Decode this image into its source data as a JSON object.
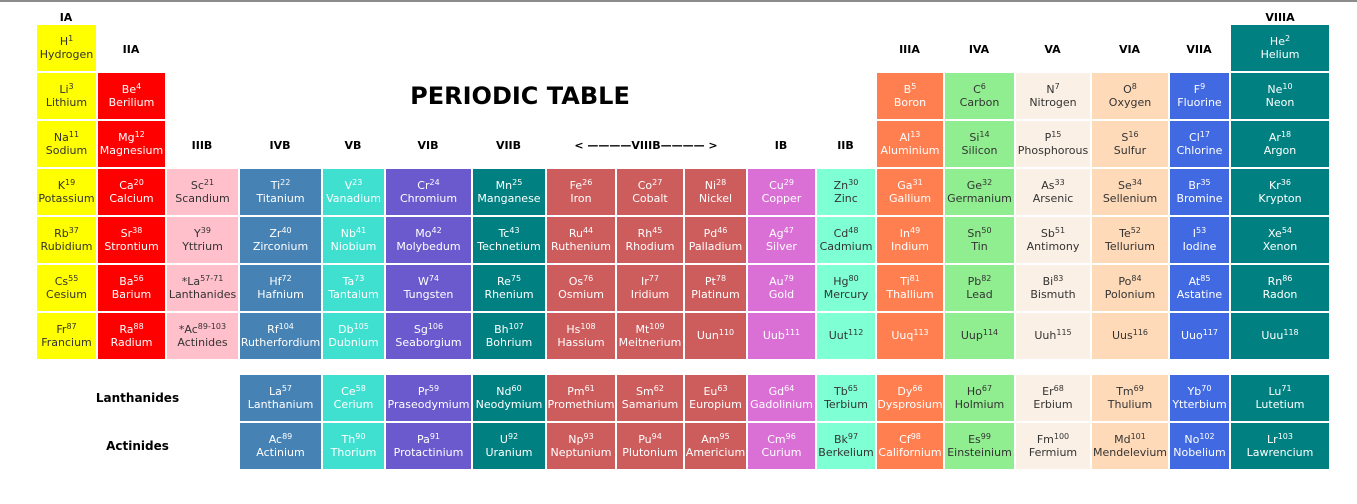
{
  "title": "PERIODIC TABLE",
  "group_headers": [
    {
      "text": "IA"
    },
    {
      "text": "IIA"
    },
    {
      "text": "IIIB"
    },
    {
      "text": "IVB"
    },
    {
      "text": "VB"
    },
    {
      "text": "VIB"
    },
    {
      "text": "VIIB"
    },
    {
      "text": "< ————VIIIB———— >"
    },
    {
      "text": "IB"
    },
    {
      "text": "IIB"
    },
    {
      "text": "IIIA"
    },
    {
      "text": "IVA"
    },
    {
      "text": "VA"
    },
    {
      "text": "VIA"
    },
    {
      "text": "VIIA"
    },
    {
      "text": "VIIIA"
    }
  ],
  "side_labels": {
    "lanthanides": "Lanthanides",
    "actinides": "Actinides"
  },
  "colors": {
    "yellow": "#ffff00",
    "red": "#ff0000",
    "pink": "#ffc0cb",
    "steel": "#4682b4",
    "turq": "#40e0d0",
    "slate": "#6a5acd",
    "teal": "#008080",
    "indian": "#cd5c5c",
    "orchid": "#da70d6",
    "aqua": "#7fffd4",
    "coral": "#ff7f50",
    "lgreen": "#90ee90",
    "linen": "#faf0e6",
    "peach": "#ffdab9",
    "royal": "#4169e1"
  },
  "elements": [
    {
      "sym": "H",
      "num": "1",
      "name": "Hydrogen",
      "row": 1,
      "col": 1,
      "color": "yellow"
    },
    {
      "sym": "He",
      "num": "2",
      "name": "Helium",
      "row": 1,
      "col": 18,
      "color": "teal"
    },
    {
      "sym": "Li",
      "num": "3",
      "name": "Lithium",
      "row": 2,
      "col": 1,
      "color": "yellow"
    },
    {
      "sym": "Be",
      "num": "4",
      "name": "Berilium",
      "row": 2,
      "col": 2,
      "color": "red"
    },
    {
      "sym": "B",
      "num": "5",
      "name": "Boron",
      "row": 2,
      "col": 13,
      "color": "coral"
    },
    {
      "sym": "C",
      "num": "6",
      "name": "Carbon",
      "row": 2,
      "col": 14,
      "color": "lgreen"
    },
    {
      "sym": "N",
      "num": "7",
      "name": "Nitrogen",
      "row": 2,
      "col": 15,
      "color": "linen"
    },
    {
      "sym": "O",
      "num": "8",
      "name": "Oxygen",
      "row": 2,
      "col": 16,
      "color": "peach"
    },
    {
      "sym": "F",
      "num": "9",
      "name": "Fluorine",
      "row": 2,
      "col": 17,
      "color": "royal"
    },
    {
      "sym": "Ne",
      "num": "10",
      "name": "Neon",
      "row": 2,
      "col": 18,
      "color": "teal"
    },
    {
      "sym": "Na",
      "num": "11",
      "name": "Sodium",
      "row": 3,
      "col": 1,
      "color": "yellow"
    },
    {
      "sym": "Mg",
      "num": "12",
      "name": "Magnesium",
      "row": 3,
      "col": 2,
      "color": "red"
    },
    {
      "sym": "Al",
      "num": "13",
      "name": "Aluminium",
      "row": 3,
      "col": 13,
      "color": "coral"
    },
    {
      "sym": "Si",
      "num": "14",
      "name": "Silicon",
      "row": 3,
      "col": 14,
      "color": "lgreen"
    },
    {
      "sym": "P",
      "num": "15",
      "name": "Phosphorous",
      "row": 3,
      "col": 15,
      "color": "linen"
    },
    {
      "sym": "S",
      "num": "16",
      "name": "Sulfur",
      "row": 3,
      "col": 16,
      "color": "peach"
    },
    {
      "sym": "Cl",
      "num": "17",
      "name": "Chlorine",
      "row": 3,
      "col": 17,
      "color": "royal"
    },
    {
      "sym": "Ar",
      "num": "18",
      "name": "Argon",
      "row": 3,
      "col": 18,
      "color": "teal"
    },
    {
      "sym": "K",
      "num": "19",
      "name": "Potassium",
      "row": 4,
      "col": 1,
      "color": "yellow"
    },
    {
      "sym": "Ca",
      "num": "20",
      "name": "Calcium",
      "row": 4,
      "col": 2,
      "color": "red"
    },
    {
      "sym": "Sc",
      "num": "21",
      "name": "Scandium",
      "row": 4,
      "col": 3,
      "color": "pink"
    },
    {
      "sym": "Ti",
      "num": "22",
      "name": "Titanium",
      "row": 4,
      "col": 4,
      "color": "steel"
    },
    {
      "sym": "V",
      "num": "23",
      "name": "Vanadium",
      "row": 4,
      "col": 5,
      "color": "turq"
    },
    {
      "sym": "Cr",
      "num": "24",
      "name": "Chromium",
      "row": 4,
      "col": 6,
      "color": "slate"
    },
    {
      "sym": "Mn",
      "num": "25",
      "name": "Manganese",
      "row": 4,
      "col": 7,
      "color": "teal"
    },
    {
      "sym": "Fe",
      "num": "26",
      "name": "Iron",
      "row": 4,
      "col": 8,
      "color": "indian"
    },
    {
      "sym": "Co",
      "num": "27",
      "name": "Cobalt",
      "row": 4,
      "col": 9,
      "color": "indian"
    },
    {
      "sym": "Ni",
      "num": "28",
      "name": "Nickel",
      "row": 4,
      "col": 10,
      "color": "indian"
    },
    {
      "sym": "Cu",
      "num": "29",
      "name": "Copper",
      "row": 4,
      "col": 11,
      "color": "orchid"
    },
    {
      "sym": "Zn",
      "num": "30",
      "name": "Zinc",
      "row": 4,
      "col": 12,
      "color": "aqua"
    },
    {
      "sym": "Ga",
      "num": "31",
      "name": "Gallium",
      "row": 4,
      "col": 13,
      "color": "coral"
    },
    {
      "sym": "Ge",
      "num": "32",
      "name": "Germanium",
      "row": 4,
      "col": 14,
      "color": "lgreen"
    },
    {
      "sym": "As",
      "num": "33",
      "name": "Arsenic",
      "row": 4,
      "col": 15,
      "color": "linen"
    },
    {
      "sym": "Se",
      "num": "34",
      "name": "Sellenium",
      "row": 4,
      "col": 16,
      "color": "peach"
    },
    {
      "sym": "Br",
      "num": "35",
      "name": "Bromine",
      "row": 4,
      "col": 17,
      "color": "royal"
    },
    {
      "sym": "Kr",
      "num": "36",
      "name": "Krypton",
      "row": 4,
      "col": 18,
      "color": "teal"
    },
    {
      "sym": "Rb",
      "num": "37",
      "name": "Rubidium",
      "row": 5,
      "col": 1,
      "color": "yellow"
    },
    {
      "sym": "Sr",
      "num": "38",
      "name": "Strontium",
      "row": 5,
      "col": 2,
      "color": "red"
    },
    {
      "sym": "Y",
      "num": "39",
      "name": "Yttrium",
      "row": 5,
      "col": 3,
      "color": "pink"
    },
    {
      "sym": "Zr",
      "num": "40",
      "name": "Zirconium",
      "row": 5,
      "col": 4,
      "color": "steel"
    },
    {
      "sym": "Nb",
      "num": "41",
      "name": "Niobium",
      "row": 5,
      "col": 5,
      "color": "turq"
    },
    {
      "sym": "Mo",
      "num": "42",
      "name": "Molybedum",
      "row": 5,
      "col": 6,
      "color": "slate"
    },
    {
      "sym": "Tc",
      "num": "43",
      "name": "Technetium",
      "row": 5,
      "col": 7,
      "color": "teal"
    },
    {
      "sym": "Ru",
      "num": "44",
      "name": "Ruthenium",
      "row": 5,
      "col": 8,
      "color": "indian"
    },
    {
      "sym": "Rh",
      "num": "45",
      "name": "Rhodium",
      "row": 5,
      "col": 9,
      "color": "indian"
    },
    {
      "sym": "Pd",
      "num": "46",
      "name": "Palladium",
      "row": 5,
      "col": 10,
      "color": "indian"
    },
    {
      "sym": "Ag",
      "num": "47",
      "name": "Silver",
      "row": 5,
      "col": 11,
      "color": "orchid"
    },
    {
      "sym": "Cd",
      "num": "48",
      "name": "Cadmium",
      "row": 5,
      "col": 12,
      "color": "aqua"
    },
    {
      "sym": "In",
      "num": "49",
      "name": "Indium",
      "row": 5,
      "col": 13,
      "color": "coral"
    },
    {
      "sym": "Sn",
      "num": "50",
      "name": "Tin",
      "row": 5,
      "col": 14,
      "color": "lgreen"
    },
    {
      "sym": "Sb",
      "num": "51",
      "name": "Antimony",
      "row": 5,
      "col": 15,
      "color": "linen"
    },
    {
      "sym": "Te",
      "num": "52",
      "name": "Tellurium",
      "row": 5,
      "col": 16,
      "color": "peach"
    },
    {
      "sym": "I",
      "num": "53",
      "name": "Iodine",
      "row": 5,
      "col": 17,
      "color": "royal"
    },
    {
      "sym": "Xe",
      "num": "54",
      "name": "Xenon",
      "row": 5,
      "col": 18,
      "color": "teal"
    },
    {
      "sym": "Cs",
      "num": "55",
      "name": "Cesium",
      "row": 6,
      "col": 1,
      "color": "yellow"
    },
    {
      "sym": "Ba",
      "num": "56",
      "name": "Barium",
      "row": 6,
      "col": 2,
      "color": "red"
    },
    {
      "sym": "*La",
      "num": "57-71",
      "name": "Lanthanides",
      "row": 6,
      "col": 3,
      "color": "pink"
    },
    {
      "sym": "Hf",
      "num": "72",
      "name": "Hafnium",
      "row": 6,
      "col": 4,
      "color": "steel"
    },
    {
      "sym": "Ta",
      "num": "73",
      "name": "Tantalum",
      "row": 6,
      "col": 5,
      "color": "turq"
    },
    {
      "sym": "W",
      "num": "74",
      "name": "Tungsten",
      "row": 6,
      "col": 6,
      "color": "slate"
    },
    {
      "sym": "Re",
      "num": "75",
      "name": "Rhenium",
      "row": 6,
      "col": 7,
      "color": "teal"
    },
    {
      "sym": "Os",
      "num": "76",
      "name": "Osmium",
      "row": 6,
      "col": 8,
      "color": "indian"
    },
    {
      "sym": "Ir",
      "num": "77",
      "name": "Iridium",
      "row": 6,
      "col": 9,
      "color": "indian"
    },
    {
      "sym": "Pt",
      "num": "78",
      "name": "Platinum",
      "row": 6,
      "col": 10,
      "color": "indian"
    },
    {
      "sym": "Au",
      "num": "79",
      "name": "Gold",
      "row": 6,
      "col": 11,
      "color": "orchid"
    },
    {
      "sym": "Hg",
      "num": "80",
      "name": "Mercury",
      "row": 6,
      "col": 12,
      "color": "aqua"
    },
    {
      "sym": "Ti",
      "num": "81",
      "name": "Thallium",
      "row": 6,
      "col": 13,
      "color": "coral"
    },
    {
      "sym": "Pb",
      "num": "82",
      "name": "Lead",
      "row": 6,
      "col": 14,
      "color": "lgreen"
    },
    {
      "sym": "Bi",
      "num": "83",
      "name": "Bismuth",
      "row": 6,
      "col": 15,
      "color": "linen"
    },
    {
      "sym": "Po",
      "num": "84",
      "name": "Polonium",
      "row": 6,
      "col": 16,
      "color": "peach"
    },
    {
      "sym": "At",
      "num": "85",
      "name": "Astatine",
      "row": 6,
      "col": 17,
      "color": "royal"
    },
    {
      "sym": "Rn",
      "num": "86",
      "name": "Radon",
      "row": 6,
      "col": 18,
      "color": "teal"
    },
    {
      "sym": "Fr",
      "num": "87",
      "name": "Francium",
      "row": 7,
      "col": 1,
      "color": "yellow"
    },
    {
      "sym": "Ra",
      "num": "88",
      "name": "Radium",
      "row": 7,
      "col": 2,
      "color": "red"
    },
    {
      "sym": "*Ac",
      "num": "89-103",
      "name": "Actinides",
      "row": 7,
      "col": 3,
      "color": "pink"
    },
    {
      "sym": "Rf",
      "num": "104",
      "name": "Rutherfordium",
      "row": 7,
      "col": 4,
      "color": "steel"
    },
    {
      "sym": "Db",
      "num": "105",
      "name": "Dubnium",
      "row": 7,
      "col": 5,
      "color": "turq"
    },
    {
      "sym": "Sg",
      "num": "106",
      "name": "Seaborgium",
      "row": 7,
      "col": 6,
      "color": "slate"
    },
    {
      "sym": "Bh",
      "num": "107",
      "name": "Bohrium",
      "row": 7,
      "col": 7,
      "color": "teal"
    },
    {
      "sym": "Hs",
      "num": "108",
      "name": "Hassium",
      "row": 7,
      "col": 8,
      "color": "indian"
    },
    {
      "sym": "Mt",
      "num": "109",
      "name": "Meitnerium",
      "row": 7,
      "col": 9,
      "color": "indian"
    },
    {
      "sym": "Uun",
      "num": "110",
      "name": "",
      "row": 7,
      "col": 10,
      "color": "indian"
    },
    {
      "sym": "Uub",
      "num": "111",
      "name": "",
      "row": 7,
      "col": 11,
      "color": "orchid"
    },
    {
      "sym": "Uut",
      "num": "112",
      "name": "",
      "row": 7,
      "col": 12,
      "color": "aqua"
    },
    {
      "sym": "Uuq",
      "num": "113",
      "name": "",
      "row": 7,
      "col": 13,
      "color": "coral"
    },
    {
      "sym": "Uup",
      "num": "114",
      "name": "",
      "row": 7,
      "col": 14,
      "color": "lgreen"
    },
    {
      "sym": "Uuh",
      "num": "115",
      "name": "",
      "row": 7,
      "col": 15,
      "color": "linen"
    },
    {
      "sym": "Uus",
      "num": "116",
      "name": "",
      "row": 7,
      "col": 16,
      "color": "peach"
    },
    {
      "sym": "Uuo",
      "num": "117",
      "name": "",
      "row": 7,
      "col": 17,
      "color": "royal"
    },
    {
      "sym": "Uuu",
      "num": "118",
      "name": "",
      "row": 7,
      "col": 18,
      "color": "teal"
    },
    {
      "sym": "La",
      "num": "57",
      "name": "Lanthanium",
      "row": 8,
      "col": 4,
      "color": "steel"
    },
    {
      "sym": "Ce",
      "num": "58",
      "name": "Cerium",
      "row": 8,
      "col": 5,
      "color": "turq"
    },
    {
      "sym": "Pr",
      "num": "59",
      "name": "Praseodymium",
      "row": 8,
      "col": 6,
      "color": "slate"
    },
    {
      "sym": "Nd",
      "num": "60",
      "name": "Neodymium",
      "row": 8,
      "col": 7,
      "color": "teal"
    },
    {
      "sym": "Pm",
      "num": "61",
      "name": "Promethium",
      "row": 8,
      "col": 8,
      "color": "indian"
    },
    {
      "sym": "Sm",
      "num": "62",
      "name": "Samarium",
      "row": 8,
      "col": 9,
      "color": "indian"
    },
    {
      "sym": "Eu",
      "num": "63",
      "name": "Europium",
      "row": 8,
      "col": 10,
      "color": "indian"
    },
    {
      "sym": "Gd",
      "num": "64",
      "name": "Gadolinium",
      "row": 8,
      "col": 11,
      "color": "orchid"
    },
    {
      "sym": "Tb",
      "num": "65",
      "name": "Terbium",
      "row": 8,
      "col": 12,
      "color": "aqua"
    },
    {
      "sym": "Dy",
      "num": "66",
      "name": "Dysprosium",
      "row": 8,
      "col": 13,
      "color": "coral"
    },
    {
      "sym": "Ho",
      "num": "67",
      "name": "Holmium",
      "row": 8,
      "col": 14,
      "color": "lgreen"
    },
    {
      "sym": "Er",
      "num": "68",
      "name": "Erbium",
      "row": 8,
      "col": 15,
      "color": "linen"
    },
    {
      "sym": "Tm",
      "num": "69",
      "name": "Thulium",
      "row": 8,
      "col": 16,
      "color": "peach"
    },
    {
      "sym": "Yb",
      "num": "70",
      "name": "Ytterbium",
      "row": 8,
      "col": 17,
      "color": "royal"
    },
    {
      "sym": "Lu",
      "num": "71",
      "name": "Lutetium",
      "row": 8,
      "col": 18,
      "color": "teal"
    },
    {
      "sym": "Ac",
      "num": "89",
      "name": "Actinium",
      "row": 9,
      "col": 4,
      "color": "steel"
    },
    {
      "sym": "Th",
      "num": "90",
      "name": "Thorium",
      "row": 9,
      "col": 5,
      "color": "turq"
    },
    {
      "sym": "Pa",
      "num": "91",
      "name": "Protactinium",
      "row": 9,
      "col": 6,
      "color": "slate"
    },
    {
      "sym": "U",
      "num": "92",
      "name": "Uranium",
      "row": 9,
      "col": 7,
      "color": "teal"
    },
    {
      "sym": "Np",
      "num": "93",
      "name": "Neptunium",
      "row": 9,
      "col": 8,
      "color": "indian"
    },
    {
      "sym": "Pu",
      "num": "94",
      "name": "Plutonium",
      "row": 9,
      "col": 9,
      "color": "indian"
    },
    {
      "sym": "Am",
      "num": "95",
      "name": "Americium",
      "row": 9,
      "col": 10,
      "color": "indian"
    },
    {
      "sym": "Cm",
      "num": "96",
      "name": "Curium",
      "row": 9,
      "col": 11,
      "color": "orchid"
    },
    {
      "sym": "Bk",
      "num": "97",
      "name": "Berkelium",
      "row": 9,
      "col": 12,
      "color": "aqua"
    },
    {
      "sym": "Cf",
      "num": "98",
      "name": "Californium",
      "row": 9,
      "col": 13,
      "color": "coral"
    },
    {
      "sym": "Es",
      "num": "99",
      "name": "Einsteinium",
      "row": 9,
      "col": 14,
      "color": "lgreen"
    },
    {
      "sym": "Fm",
      "num": "100",
      "name": "Fermium",
      "row": 9,
      "col": 15,
      "color": "linen"
    },
    {
      "sym": "Md",
      "num": "101",
      "name": "Mendelevium",
      "row": 9,
      "col": 16,
      "color": "peach"
    },
    {
      "sym": "No",
      "num": "102",
      "name": "Nobelium",
      "row": 9,
      "col": 17,
      "color": "royal"
    },
    {
      "sym": "Lr",
      "num": "103",
      "name": "Lawrencium",
      "row": 9,
      "col": 18,
      "color": "teal"
    }
  ]
}
